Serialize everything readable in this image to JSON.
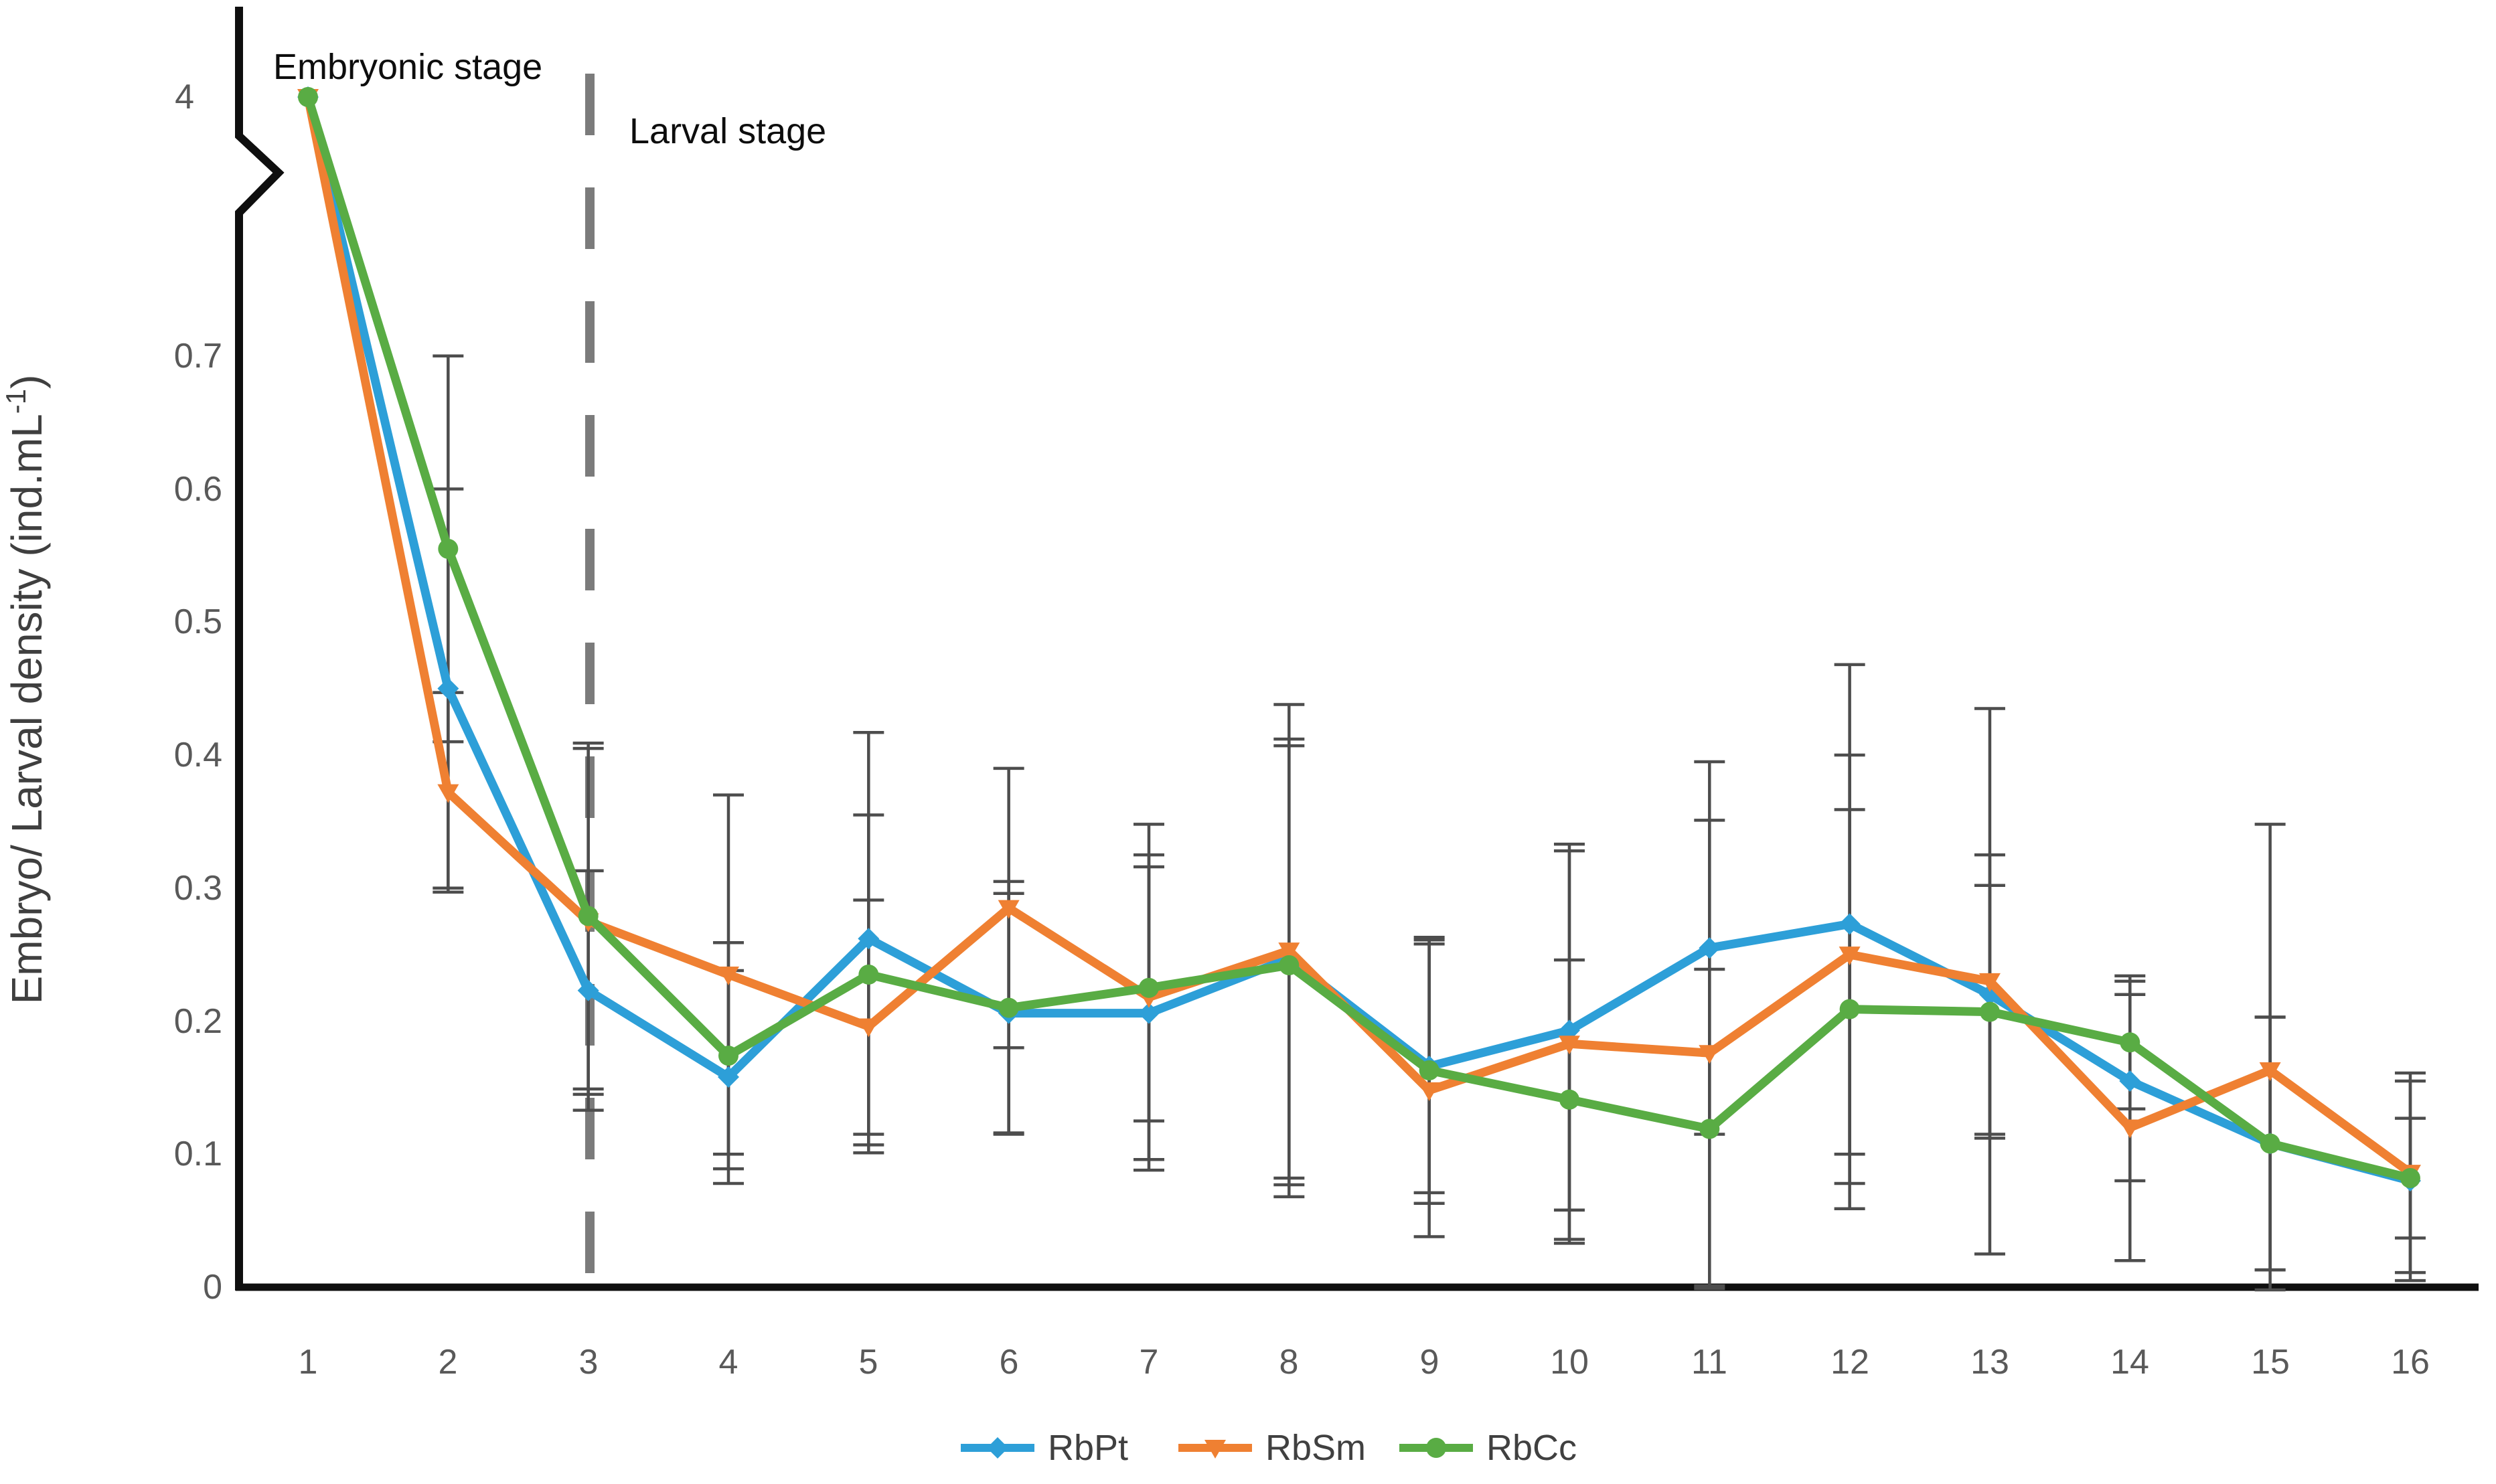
{
  "chart_data": {
    "type": "line",
    "title": "",
    "ylabel": "Embryo/ Larval density (ind.mL⁻¹)",
    "ylabel_parts": {
      "pre": "Embryo/ Larval density (ind.mL",
      "sup": "-1",
      "post": ")"
    },
    "xlabel": "",
    "x": [
      1,
      2,
      3,
      4,
      5,
      6,
      7,
      8,
      9,
      10,
      11,
      12,
      13,
      14,
      15,
      16
    ],
    "y_ticks": [
      "4",
      "0.7",
      "0.6",
      "0.5",
      "0.4",
      "0.3",
      "0.2",
      "0.1",
      "0"
    ],
    "ylim": [
      0,
      0.75
    ],
    "broken_y_axis": true,
    "break_top_value": 4,
    "grid": false,
    "legend_position": "bottom",
    "annotations": [
      {
        "id": "embryonic",
        "text": "Embryonic stage"
      },
      {
        "id": "larval",
        "text": "Larval stage"
      }
    ],
    "stage_divider_x": 3,
    "series": [
      {
        "name": "RbPt",
        "color": "#2D9FD8",
        "marker": "diamond",
        "values": [
          4,
          0.45,
          0.223,
          0.158,
          0.262,
          0.206,
          0.206,
          0.247,
          0.166,
          0.193,
          0.255,
          0.273,
          0.22,
          0.155,
          0.108,
          0.08
        ],
        "errors": [
          0,
          0.15,
          0.09,
          0.08,
          0.155,
          0.09,
          0.11,
          0.165,
          0.095,
          0.135,
          0.14,
          0.195,
          0.105,
          0.075,
          0.095,
          0.075
        ]
      },
      {
        "name": "RbSm",
        "color": "#EF8032",
        "marker": "triangle-down",
        "values": [
          4,
          0.372,
          0.275,
          0.235,
          0.196,
          0.285,
          0.218,
          0.253,
          0.148,
          0.183,
          0.176,
          0.25,
          0.23,
          0.12,
          0.163,
          0.086
        ],
        "errors": [
          0,
          0.075,
          0.13,
          0.135,
          0.095,
          0.105,
          0.13,
          0.185,
          0.11,
          0.15,
          0.175,
          0.15,
          0.205,
          0.1,
          0.185,
          0.075
        ]
      },
      {
        "name": "RbCc",
        "color": "#59AC44",
        "marker": "circle",
        "values": [
          4,
          0.555,
          0.279,
          0.174,
          0.235,
          0.21,
          0.225,
          0.242,
          0.163,
          0.141,
          0.119,
          0.209,
          0.207,
          0.184,
          0.108,
          0.082
        ],
        "errors": [
          0,
          0.145,
          0.13,
          0.085,
          0.12,
          0.095,
          0.1,
          0.165,
          0.1,
          0.105,
          0.12,
          0.15,
          0.095,
          0.05,
          0.095,
          0.045
        ]
      }
    ],
    "error_bar_color": "#4d4d4d",
    "divider_color": "#7b7b7b",
    "axis_color": "#0f0f0f"
  }
}
